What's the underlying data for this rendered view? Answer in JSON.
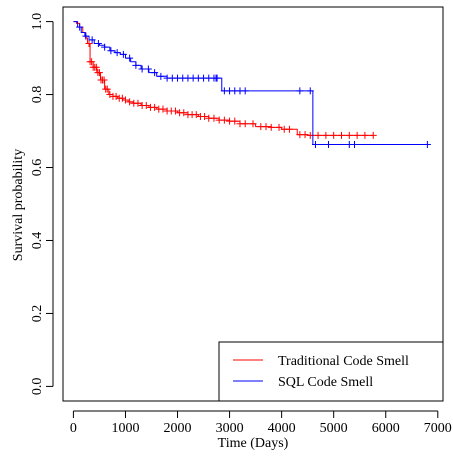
{
  "chart_data": {
    "type": "line",
    "xlabel": "Time (Days)",
    "ylabel": "Survival probability",
    "xlim": [
      -200,
      7100
    ],
    "ylim": [
      -0.04,
      1.04
    ],
    "x_ticks": [
      0,
      1000,
      2000,
      3000,
      4000,
      5000,
      6000,
      7000
    ],
    "y_ticks": [
      0.0,
      0.2,
      0.4,
      0.6,
      0.8,
      1.0
    ],
    "x_tick_labels": [
      "0",
      "1000",
      "2000",
      "3000",
      "4000",
      "5000",
      "6000",
      "7000"
    ],
    "y_tick_labels": [
      "0.0",
      "0.2",
      "0.4",
      "0.6",
      "0.8",
      "1.0"
    ],
    "grid": false,
    "legend_position": "bottom-right",
    "step": true,
    "series": [
      {
        "name": "Traditional Code Smell",
        "color": "#ff0000",
        "x": [
          0,
          60,
          120,
          180,
          230,
          270,
          320,
          380,
          450,
          520,
          600,
          680,
          760,
          850,
          950,
          1050,
          1150,
          1300,
          1450,
          1600,
          1800,
          2000,
          2200,
          2400,
          2600,
          2800,
          3000,
          3200,
          3500,
          3800,
          4000,
          4200,
          4300,
          4500,
          5000,
          5500,
          5760
        ],
        "y": [
          1.0,
          0.995,
          0.985,
          0.97,
          0.955,
          0.94,
          0.89,
          0.875,
          0.86,
          0.84,
          0.815,
          0.8,
          0.795,
          0.79,
          0.785,
          0.78,
          0.776,
          0.77,
          0.765,
          0.76,
          0.755,
          0.75,
          0.745,
          0.74,
          0.735,
          0.73,
          0.727,
          0.72,
          0.712,
          0.71,
          0.705,
          0.705,
          0.69,
          0.688,
          0.688,
          0.688,
          0.688
        ],
        "censor_x": [
          300,
          320,
          350,
          380,
          410,
          440,
          470,
          500,
          530,
          560,
          590,
          620,
          650,
          700,
          760,
          820,
          880,
          940,
          1000,
          1080,
          1160,
          1240,
          1320,
          1400,
          1480,
          1560,
          1640,
          1720,
          1800,
          1880,
          1960,
          2040,
          2120,
          2200,
          2280,
          2360,
          2440,
          2520,
          2600,
          2700,
          2800,
          2900,
          3000,
          3100,
          3200,
          3300,
          3450,
          3600,
          3700,
          3800,
          3950,
          4050,
          4150,
          4350,
          4450,
          4550,
          4700,
          4850,
          5000,
          5150,
          5300,
          5450,
          5600,
          5760
        ]
      },
      {
        "name": "SQL Code Smell",
        "color": "#0000ff",
        "x": [
          0,
          80,
          150,
          220,
          300,
          400,
          500,
          600,
          700,
          800,
          900,
          1000,
          1100,
          1200,
          1300,
          1450,
          1600,
          1800,
          2000,
          2200,
          2500,
          2750,
          2850,
          3000,
          3200,
          3400,
          4000,
          4200,
          4550,
          4600,
          5000,
          6000,
          6800
        ],
        "y": [
          1.0,
          0.985,
          0.97,
          0.96,
          0.95,
          0.94,
          0.935,
          0.93,
          0.92,
          0.915,
          0.91,
          0.9,
          0.89,
          0.88,
          0.87,
          0.86,
          0.85,
          0.845,
          0.845,
          0.845,
          0.845,
          0.845,
          0.81,
          0.81,
          0.81,
          0.81,
          0.81,
          0.81,
          0.81,
          0.663,
          0.663,
          0.663,
          0.663
        ],
        "censor_x": [
          120,
          240,
          360,
          480,
          600,
          720,
          840,
          960,
          1080,
          1200,
          1320,
          1440,
          1560,
          1680,
          1800,
          1900,
          2000,
          2100,
          2200,
          2300,
          2400,
          2500,
          2600,
          2700,
          2740,
          2760,
          2900,
          3000,
          3100,
          3200,
          3300,
          4350,
          4550,
          4650,
          4900,
          5300,
          5400,
          6800
        ]
      }
    ]
  },
  "legend": {
    "items": [
      {
        "label": "Traditional Code Smell",
        "color": "#ff0000"
      },
      {
        "label": "SQL Code Smell",
        "color": "#0000ff"
      }
    ]
  }
}
